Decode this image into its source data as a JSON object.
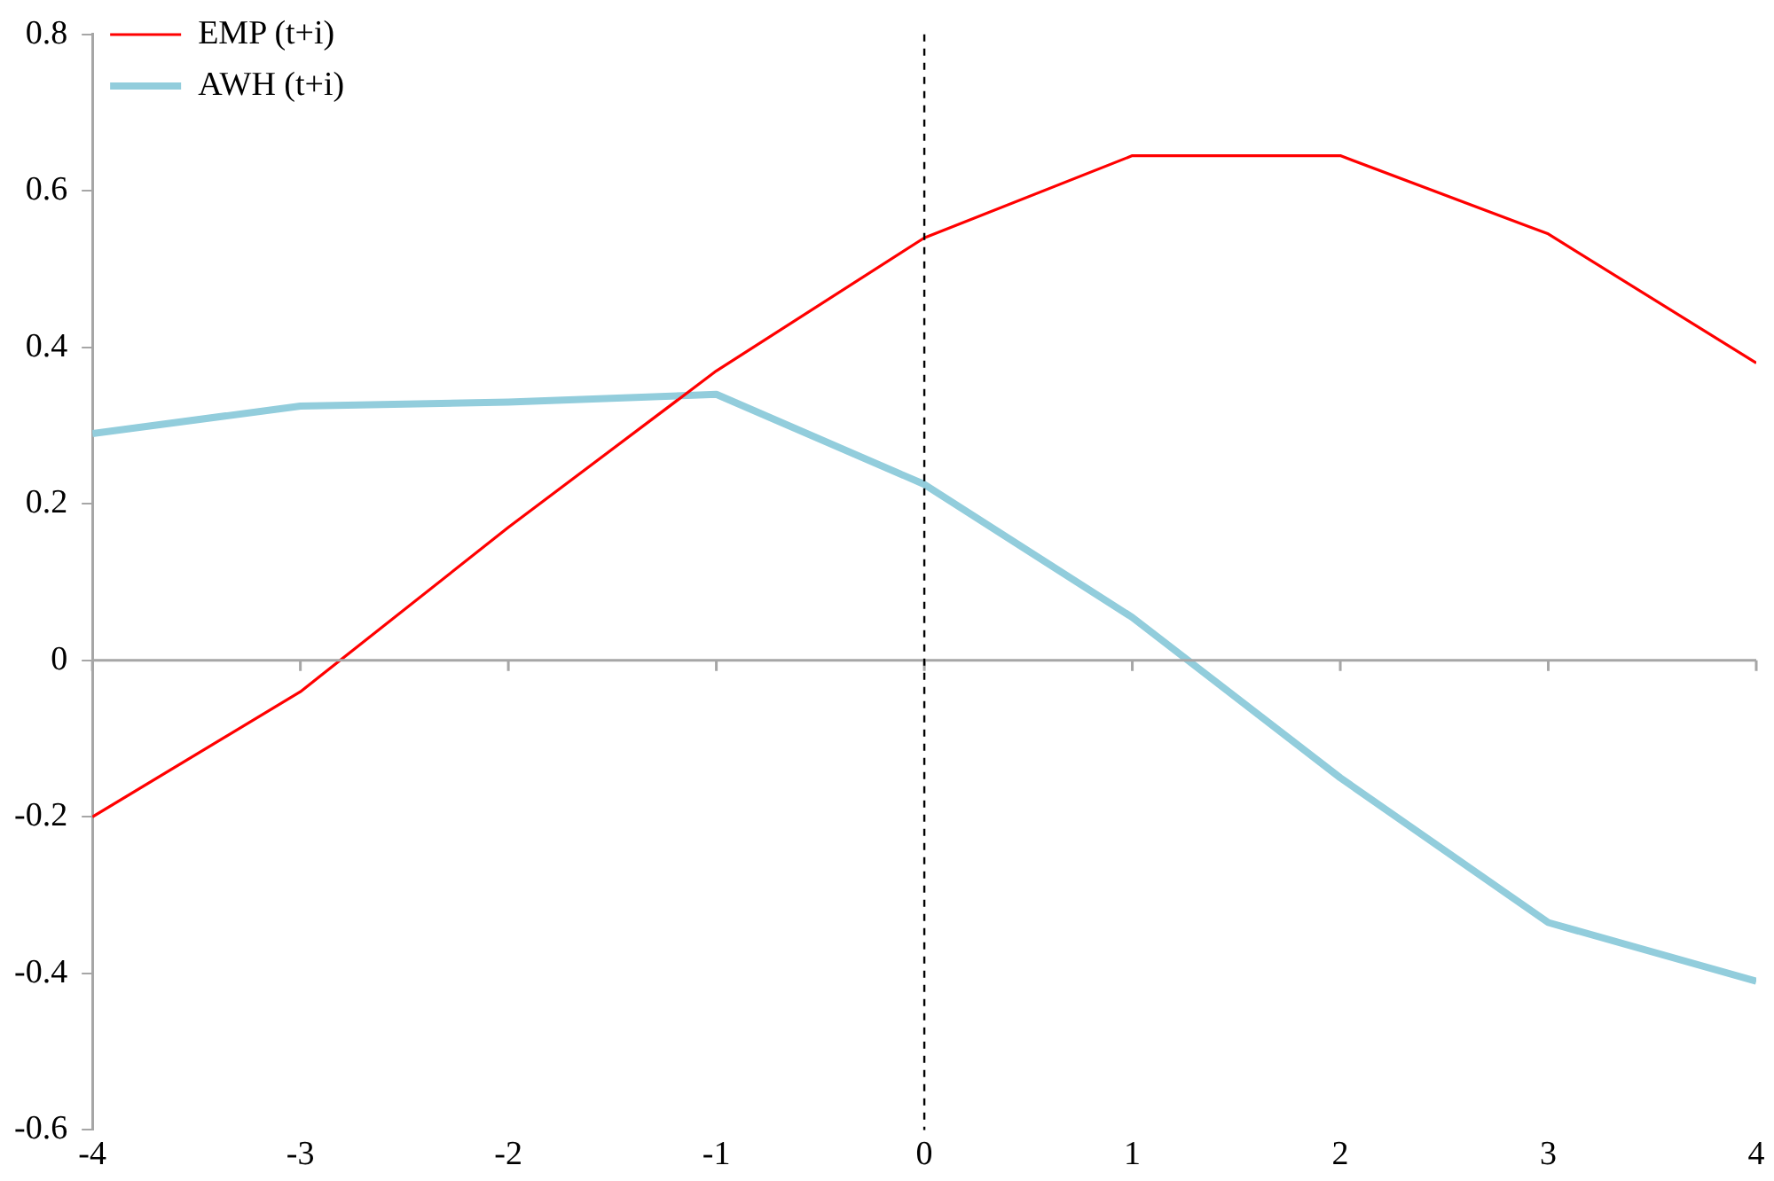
{
  "chart_data": {
    "type": "line",
    "x": [
      -4,
      -3,
      -2,
      -1,
      0,
      1,
      2,
      3,
      4
    ],
    "series": [
      {
        "name": "EMP (t+i)",
        "color": "#ff0000",
        "values": [
          -0.2,
          -0.04,
          0.17,
          0.37,
          0.54,
          0.645,
          0.645,
          0.545,
          0.38
        ]
      },
      {
        "name": "AWH (t+i)",
        "color": "#92cddc",
        "values": [
          0.29,
          0.325,
          0.33,
          0.34,
          0.225,
          0.055,
          -0.15,
          -0.335,
          -0.41
        ]
      }
    ],
    "xlim": [
      -4,
      4
    ],
    "xticks": [
      -4,
      -3,
      -2,
      -1,
      0,
      1,
      2,
      3,
      4
    ],
    "ylim": [
      -0.6,
      0.8
    ],
    "yticks": [
      -0.6,
      -0.4,
      -0.2,
      0,
      0.2,
      0.4,
      0.6,
      0.8
    ],
    "ref_lines": [
      {
        "axis": "x",
        "value": 0,
        "color": "#000000",
        "line_style": "dashed"
      }
    ],
    "grid": false,
    "legend": "top left",
    "marker": "none",
    "line_style": "solid"
  }
}
